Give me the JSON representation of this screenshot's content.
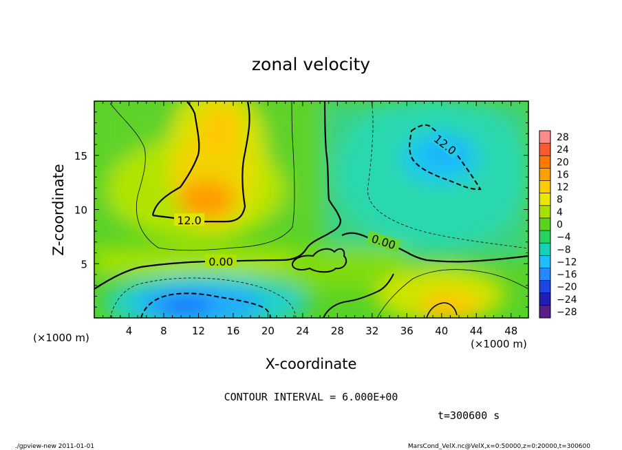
{
  "chart_data": {
    "type": "heatmap",
    "title": "zonal velocity",
    "xlabel": "X-coordinate",
    "ylabel": "Z-coordinate",
    "x_unit_label": "(×1000 m)",
    "y_unit_label": "(×1000 m)",
    "xlim": [
      0,
      50
    ],
    "ylim": [
      0,
      20
    ],
    "x_ticks": [
      4,
      8,
      12,
      16,
      20,
      24,
      28,
      32,
      36,
      40,
      44,
      48
    ],
    "y_ticks": [
      5,
      10,
      15
    ],
    "contour_interval_text": "CONTOUR INTERVAL = 6.000E+00",
    "time_text": "t=300600 s",
    "contour_labels": [
      "12.0",
      "0.00",
      "0.00",
      "12.0"
    ],
    "colorbar": {
      "levels": [
        28,
        24,
        20,
        16,
        12,
        8,
        4,
        0,
        -4,
        -8,
        -12,
        -16,
        -20,
        -24,
        -28
      ],
      "colors": [
        "#ff8c8c",
        "#ff5a32",
        "#ff7800",
        "#ffa000",
        "#ffcc00",
        "#e8e800",
        "#a8e000",
        "#5ad21e",
        "#28d262",
        "#14d2b4",
        "#1ebeff",
        "#2888ff",
        "#1e46e6",
        "#1e1eb4",
        "#5a1e8c"
      ]
    },
    "grid": false
  },
  "footer": {
    "left": "./gpview-new  2011-01-01",
    "right": "MarsCond_VelX.nc@VelX,x=0:50000,z=0:20000,t=300600"
  }
}
